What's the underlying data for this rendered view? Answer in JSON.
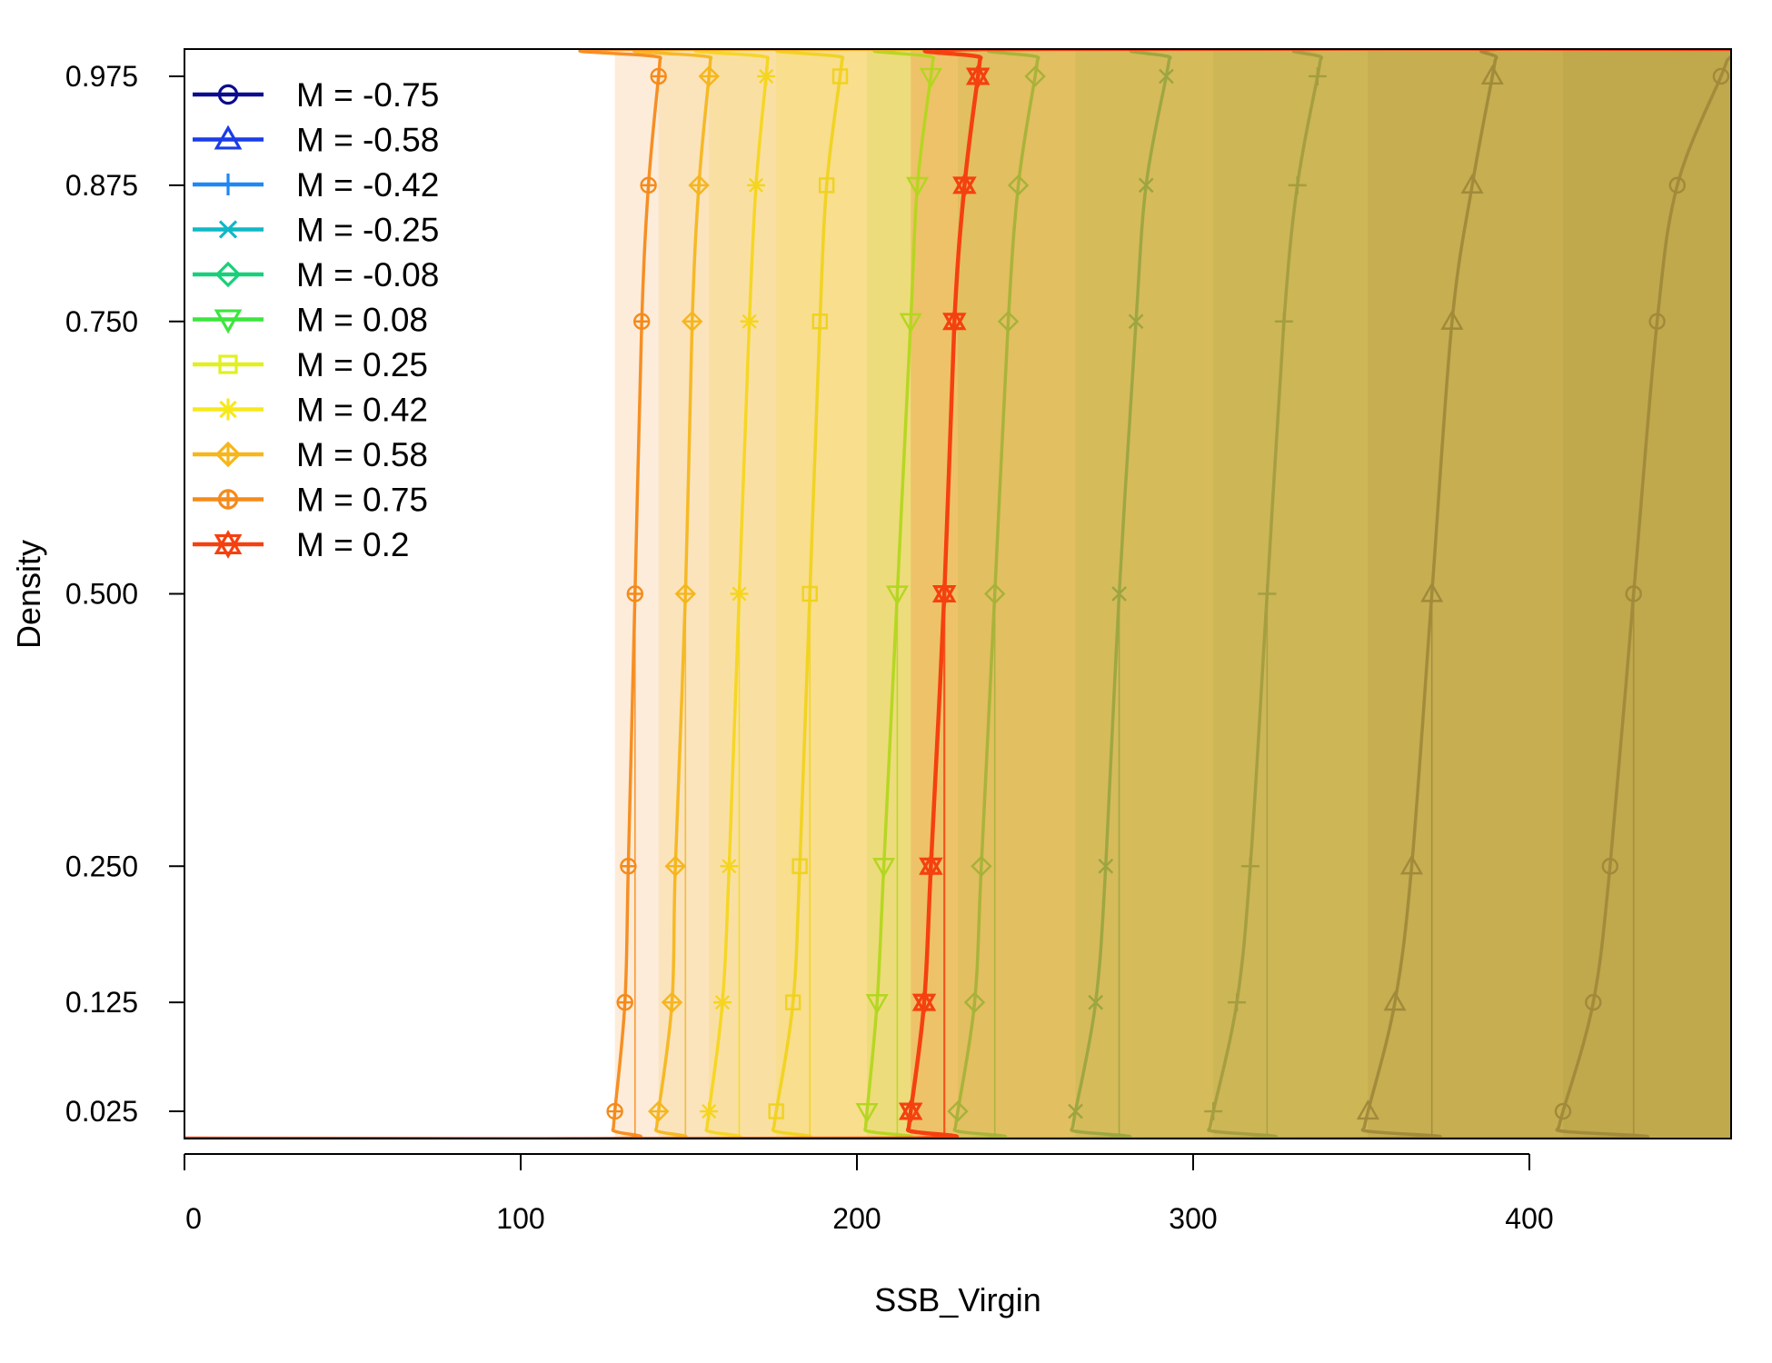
{
  "chart_data": {
    "type": "line",
    "title": "",
    "xlabel": "SSB_Virgin",
    "ylabel": "Density",
    "xlim": [
      0,
      460
    ],
    "ylim": [
      0,
      1
    ],
    "x_ticks": [
      0,
      100,
      200,
      300,
      400
    ],
    "x_tick_labels": [
      "0",
      "100",
      "200",
      "300",
      "400"
    ],
    "y_ticks": [
      0.025,
      0.125,
      0.25,
      0.5,
      0.75,
      0.875,
      0.975
    ],
    "y_tick_labels": [
      "0.025",
      "0.125",
      "0.250",
      "0.500",
      "0.750",
      "0.875",
      "0.975"
    ],
    "grid": false,
    "legend_position": "top-left",
    "series": [
      {
        "name": "M = -0.75",
        "marker": "circle",
        "legend_color": "#0B0B8F",
        "color": "#A08A3A",
        "quantiles": {
          "0.025": 410,
          "0.125": 419,
          "0.25": 424,
          "0.5": 431,
          "0.75": 438,
          "0.875": 444,
          "0.975": 457
        },
        "median": 431
      },
      {
        "name": "M = -0.58",
        "marker": "triangle-up",
        "legend_color": "#1A3CE8",
        "color": "#A08A3A",
        "quantiles": {
          "0.025": 352,
          "0.125": 360,
          "0.25": 365,
          "0.5": 371,
          "0.75": 377,
          "0.875": 383,
          "0.975": 389
        },
        "median": 371
      },
      {
        "name": "M = -0.42",
        "marker": "plus",
        "legend_color": "#1F87F5",
        "color": "#A39E40",
        "quantiles": {
          "0.025": 306,
          "0.125": 313,
          "0.25": 317,
          "0.5": 322,
          "0.75": 327,
          "0.875": 331,
          "0.975": 337
        },
        "median": 322
      },
      {
        "name": "M = -0.25",
        "marker": "x",
        "legend_color": "#10B8C6",
        "color": "#9CA540",
        "quantiles": {
          "0.025": 265,
          "0.125": 271,
          "0.25": 274,
          "0.5": 278,
          "0.75": 283,
          "0.875": 286,
          "0.975": 292
        },
        "median": 278
      },
      {
        "name": "M = -0.08",
        "marker": "diamond",
        "legend_color": "#18D07A",
        "color": "#A6B238",
        "quantiles": {
          "0.025": 230,
          "0.125": 235,
          "0.25": 237,
          "0.5": 241,
          "0.75": 245,
          "0.875": 248,
          "0.975": 253
        },
        "median": 241
      },
      {
        "name": "M = 0.08",
        "marker": "triangle-down",
        "legend_color": "#3CE63C",
        "color": "#B3D61F",
        "quantiles": {
          "0.025": 203,
          "0.125": 206,
          "0.25": 208,
          "0.5": 212,
          "0.75": 216,
          "0.875": 218,
          "0.975": 222
        },
        "median": 212
      },
      {
        "name": "M = 0.25",
        "marker": "square",
        "legend_color": "#E1F01E",
        "color": "#F0D21E",
        "quantiles": {
          "0.025": 176,
          "0.125": 181,
          "0.25": 183,
          "0.5": 186,
          "0.75": 189,
          "0.875": 191,
          "0.975": 195
        },
        "median": 186
      },
      {
        "name": "M = 0.42",
        "marker": "asterisk",
        "legend_color": "#F7E81C",
        "color": "#F5D51F",
        "quantiles": {
          "0.025": 156,
          "0.125": 160,
          "0.25": 162,
          "0.5": 165,
          "0.75": 168,
          "0.875": 170,
          "0.975": 173
        },
        "median": 165
      },
      {
        "name": "M = 0.58",
        "marker": "diamond-plus",
        "legend_color": "#F7B61B",
        "color": "#F5B61E",
        "quantiles": {
          "0.025": 141,
          "0.125": 145,
          "0.25": 146,
          "0.5": 149,
          "0.75": 151,
          "0.875": 153,
          "0.975": 156
        },
        "median": 149
      },
      {
        "name": "M = 0.75",
        "marker": "circle-plus",
        "legend_color": "#F58A1A",
        "color": "#F58A1A",
        "quantiles": {
          "0.025": 128,
          "0.125": 131,
          "0.25": 132,
          "0.5": 134,
          "0.75": 136,
          "0.875": 138,
          "0.975": 141
        },
        "median": 134
      },
      {
        "name": "M = 0.2",
        "marker": "hexagram",
        "legend_color": "#F5400F",
        "color": "#F5400F",
        "quantiles": {
          "0.025": 216,
          "0.125": 220,
          "0.25": 222,
          "0.5": 226,
          "0.75": 229,
          "0.875": 232,
          "0.975": 236
        },
        "median": 226
      }
    ]
  }
}
